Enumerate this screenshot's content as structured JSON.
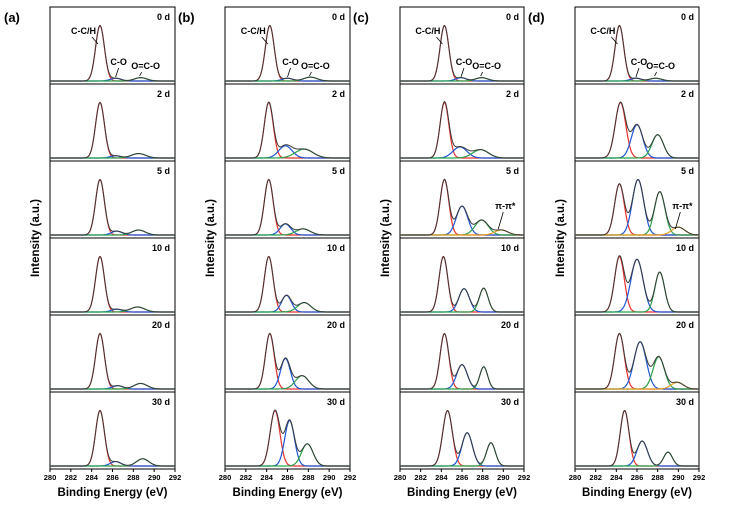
{
  "chart_data": {
    "type": "line",
    "title": "",
    "xlabel": "Binding Energy (eV)",
    "ylabel": "Intensity (a.u.)",
    "xlim": [
      280,
      292
    ],
    "x_ticks": [
      "280",
      "282",
      "284",
      "286",
      "288",
      "290",
      "292"
    ],
    "days": [
      "0 d",
      "2 d",
      "5 d",
      "10 d",
      "20 d",
      "30 d"
    ],
    "colors": {
      "C-C/H": "#e8312c",
      "C-O": "#1f57d6",
      "O=C-O": "#2aa14a",
      "pi-pi*": "#e6a020",
      "envelope": "#3a3a3a",
      "baseline": "#8a4fd6"
    },
    "panels": [
      {
        "label": "(a)",
        "subplots": [
          {
            "day": "0 d",
            "peaks": [
              {
                "component": "C-C/H",
                "center": 284.8,
                "height": 1.0,
                "fwhm": 1.0
              },
              {
                "component": "C-O",
                "center": 286.3,
                "height": 0.05,
                "fwhm": 1.2
              },
              {
                "component": "O=C-O",
                "center": 288.7,
                "height": 0.06,
                "fwhm": 1.4
              }
            ]
          },
          {
            "day": "2 d",
            "peaks": [
              {
                "component": "C-C/H",
                "center": 284.8,
                "height": 1.0,
                "fwhm": 1.0
              },
              {
                "component": "C-O",
                "center": 286.3,
                "height": 0.04,
                "fwhm": 1.2
              },
              {
                "component": "O=C-O",
                "center": 288.5,
                "height": 0.08,
                "fwhm": 1.6
              }
            ]
          },
          {
            "day": "5 d",
            "peaks": [
              {
                "component": "C-C/H",
                "center": 284.8,
                "height": 1.0,
                "fwhm": 1.0
              },
              {
                "component": "C-O",
                "center": 286.4,
                "height": 0.07,
                "fwhm": 1.2
              },
              {
                "component": "O=C-O",
                "center": 288.5,
                "height": 0.09,
                "fwhm": 1.5
              }
            ]
          },
          {
            "day": "10 d",
            "peaks": [
              {
                "component": "C-C/H",
                "center": 284.8,
                "height": 1.0,
                "fwhm": 1.0
              },
              {
                "component": "C-O",
                "center": 286.4,
                "height": 0.05,
                "fwhm": 1.2
              },
              {
                "component": "O=C-O",
                "center": 288.4,
                "height": 0.09,
                "fwhm": 1.6
              }
            ]
          },
          {
            "day": "20 d",
            "peaks": [
              {
                "component": "C-C/H",
                "center": 284.8,
                "height": 1.0,
                "fwhm": 1.0
              },
              {
                "component": "C-O",
                "center": 286.5,
                "height": 0.06,
                "fwhm": 1.2
              },
              {
                "component": "O=C-O",
                "center": 288.7,
                "height": 0.1,
                "fwhm": 1.5
              }
            ]
          },
          {
            "day": "30 d",
            "peaks": [
              {
                "component": "C-C/H",
                "center": 284.8,
                "height": 1.0,
                "fwhm": 1.0
              },
              {
                "component": "C-O",
                "center": 286.3,
                "height": 0.08,
                "fwhm": 1.2
              },
              {
                "component": "O=C-O",
                "center": 288.9,
                "height": 0.13,
                "fwhm": 1.4
              }
            ]
          }
        ]
      },
      {
        "label": "(b)",
        "subplots": [
          {
            "day": "0 d",
            "peaks": [
              {
                "component": "C-C/H",
                "center": 284.3,
                "height": 1.0,
                "fwhm": 1.0
              },
              {
                "component": "C-O",
                "center": 286.0,
                "height": 0.05,
                "fwhm": 1.2
              },
              {
                "component": "O=C-O",
                "center": 288.2,
                "height": 0.07,
                "fwhm": 1.5
              }
            ]
          },
          {
            "day": "2 d",
            "peaks": [
              {
                "component": "C-C/H",
                "center": 284.2,
                "height": 1.0,
                "fwhm": 1.0
              },
              {
                "component": "C-O",
                "center": 285.8,
                "height": 0.22,
                "fwhm": 1.5
              },
              {
                "component": "O=C-O",
                "center": 287.6,
                "height": 0.16,
                "fwhm": 2.0
              }
            ]
          },
          {
            "day": "5 d",
            "peaks": [
              {
                "component": "C-C/H",
                "center": 284.2,
                "height": 1.0,
                "fwhm": 1.0
              },
              {
                "component": "C-O",
                "center": 285.8,
                "height": 0.2,
                "fwhm": 1.2
              },
              {
                "component": "O=C-O",
                "center": 287.5,
                "height": 0.11,
                "fwhm": 1.6
              }
            ]
          },
          {
            "day": "10 d",
            "peaks": [
              {
                "component": "C-C/H",
                "center": 284.2,
                "height": 1.0,
                "fwhm": 1.0
              },
              {
                "component": "C-O",
                "center": 285.9,
                "height": 0.3,
                "fwhm": 1.1
              },
              {
                "component": "O=C-O",
                "center": 287.6,
                "height": 0.17,
                "fwhm": 1.5
              }
            ]
          },
          {
            "day": "20 d",
            "peaks": [
              {
                "component": "C-C/H",
                "center": 284.3,
                "height": 1.0,
                "fwhm": 1.0
              },
              {
                "component": "C-O",
                "center": 285.8,
                "height": 0.55,
                "fwhm": 1.1
              },
              {
                "component": "O=C-O",
                "center": 287.4,
                "height": 0.24,
                "fwhm": 1.5
              }
            ]
          },
          {
            "day": "30 d",
            "peaks": [
              {
                "component": "C-C/H",
                "center": 284.8,
                "height": 1.0,
                "fwhm": 1.1
              },
              {
                "component": "C-O",
                "center": 286.2,
                "height": 0.82,
                "fwhm": 1.1
              },
              {
                "component": "O=C-O",
                "center": 287.9,
                "height": 0.4,
                "fwhm": 1.3
              }
            ]
          }
        ]
      },
      {
        "label": "(c)",
        "subplots": [
          {
            "day": "0 d",
            "peaks": [
              {
                "component": "C-C/H",
                "center": 284.3,
                "height": 1.0,
                "fwhm": 1.0
              },
              {
                "component": "C-O",
                "center": 285.9,
                "height": 0.06,
                "fwhm": 1.2
              },
              {
                "component": "O=C-O",
                "center": 287.9,
                "height": 0.06,
                "fwhm": 1.4
              }
            ]
          },
          {
            "day": "2 d",
            "peaks": [
              {
                "component": "C-C/H",
                "center": 284.3,
                "height": 1.0,
                "fwhm": 1.0
              },
              {
                "component": "C-O",
                "center": 285.8,
                "height": 0.2,
                "fwhm": 1.6
              },
              {
                "component": "O=C-O",
                "center": 287.8,
                "height": 0.15,
                "fwhm": 1.8
              }
            ]
          },
          {
            "day": "5 d",
            "peaks": [
              {
                "component": "C-C/H",
                "center": 284.3,
                "height": 1.0,
                "fwhm": 1.0
              },
              {
                "component": "C-O",
                "center": 286.0,
                "height": 0.52,
                "fwhm": 1.3
              },
              {
                "component": "O=C-O",
                "center": 287.9,
                "height": 0.27,
                "fwhm": 1.5
              },
              {
                "component": "pi-pi*",
                "center": 289.8,
                "height": 0.09,
                "fwhm": 1.5
              }
            ]
          },
          {
            "day": "10 d",
            "peaks": [
              {
                "component": "C-C/H",
                "center": 284.2,
                "height": 1.0,
                "fwhm": 1.0
              },
              {
                "component": "C-O",
                "center": 286.2,
                "height": 0.42,
                "fwhm": 1.2
              },
              {
                "component": "O=C-O",
                "center": 288.1,
                "height": 0.43,
                "fwhm": 1.0
              }
            ]
          },
          {
            "day": "20 d",
            "peaks": [
              {
                "component": "C-C/H",
                "center": 284.3,
                "height": 1.0,
                "fwhm": 1.0
              },
              {
                "component": "C-O",
                "center": 286.0,
                "height": 0.44,
                "fwhm": 1.2
              },
              {
                "component": "O=C-O",
                "center": 288.1,
                "height": 0.4,
                "fwhm": 0.9
              }
            ]
          },
          {
            "day": "30 d",
            "peaks": [
              {
                "component": "C-C/H",
                "center": 284.6,
                "height": 1.0,
                "fwhm": 1.1
              },
              {
                "component": "C-O",
                "center": 286.5,
                "height": 0.6,
                "fwhm": 1.2
              },
              {
                "component": "O=C-O",
                "center": 288.8,
                "height": 0.42,
                "fwhm": 1.0
              }
            ]
          }
        ]
      },
      {
        "label": "(d)",
        "subplots": [
          {
            "day": "0 d",
            "peaks": [
              {
                "component": "C-C/H",
                "center": 284.3,
                "height": 1.0,
                "fwhm": 1.0
              },
              {
                "component": "C-O",
                "center": 285.9,
                "height": 0.05,
                "fwhm": 1.2
              },
              {
                "component": "O=C-O",
                "center": 287.8,
                "height": 0.05,
                "fwhm": 1.4
              }
            ]
          },
          {
            "day": "2 d",
            "peaks": [
              {
                "component": "C-C/H",
                "center": 284.4,
                "height": 1.0,
                "fwhm": 1.2
              },
              {
                "component": "C-O",
                "center": 286.0,
                "height": 0.6,
                "fwhm": 1.3
              },
              {
                "component": "O=C-O",
                "center": 288.0,
                "height": 0.42,
                "fwhm": 1.3
              }
            ]
          },
          {
            "day": "5 d",
            "peaks": [
              {
                "component": "C-C/H",
                "center": 284.3,
                "height": 0.92,
                "fwhm": 1.1
              },
              {
                "component": "C-O",
                "center": 286.1,
                "height": 1.0,
                "fwhm": 1.3
              },
              {
                "component": "O=C-O",
                "center": 288.2,
                "height": 0.78,
                "fwhm": 1.2
              },
              {
                "component": "pi-pi*",
                "center": 290.0,
                "height": 0.14,
                "fwhm": 1.5
              }
            ]
          },
          {
            "day": "10 d",
            "peaks": [
              {
                "component": "C-C/H",
                "center": 284.3,
                "height": 1.0,
                "fwhm": 1.1
              },
              {
                "component": "C-O",
                "center": 286.0,
                "height": 0.95,
                "fwhm": 1.4
              },
              {
                "component": "O=C-O",
                "center": 288.2,
                "height": 0.72,
                "fwhm": 1.1
              }
            ]
          },
          {
            "day": "20 d",
            "peaks": [
              {
                "component": "C-C/H",
                "center": 284.3,
                "height": 1.0,
                "fwhm": 1.1
              },
              {
                "component": "C-O",
                "center": 286.3,
                "height": 0.85,
                "fwhm": 1.4
              },
              {
                "component": "O=C-O",
                "center": 288.1,
                "height": 0.58,
                "fwhm": 1.3
              },
              {
                "component": "pi-pi*",
                "center": 289.9,
                "height": 0.12,
                "fwhm": 1.4
              }
            ]
          },
          {
            "day": "30 d",
            "peaks": [
              {
                "component": "C-C/H",
                "center": 284.8,
                "height": 1.0,
                "fwhm": 1.0
              },
              {
                "component": "C-O",
                "center": 286.5,
                "height": 0.45,
                "fwhm": 1.2
              },
              {
                "component": "O=C-O",
                "center": 289.0,
                "height": 0.25,
                "fwhm": 1.0
              }
            ]
          }
        ]
      }
    ],
    "annotations": {
      "cch": "C-C/H",
      "co": "C-O",
      "oco": "O=C-O",
      "pipi": "π-π*"
    }
  }
}
